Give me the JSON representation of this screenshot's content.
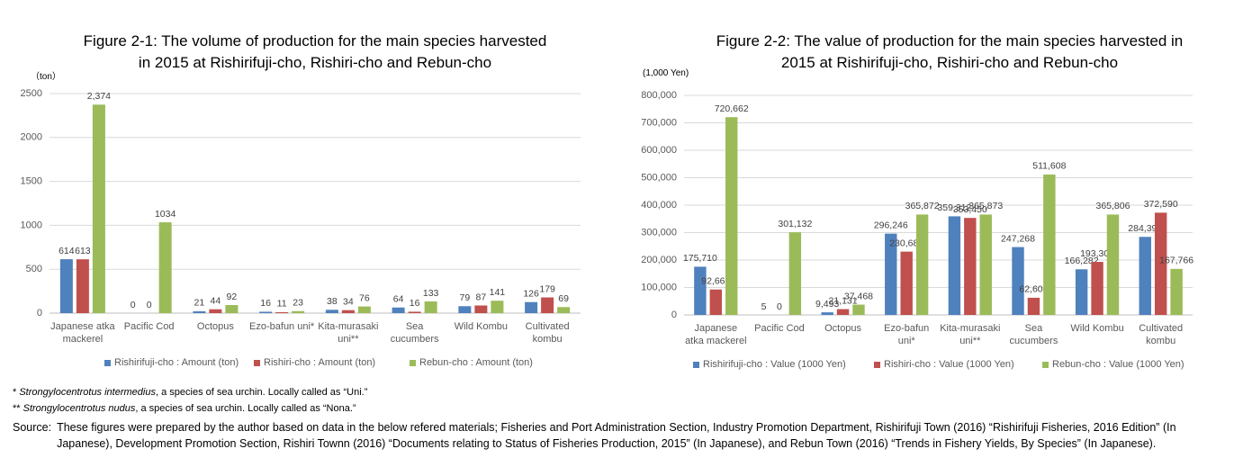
{
  "chart_data": [
    {
      "type": "bar",
      "title": "Figure 2-1:  The volume of production for the main species harvested in 2015 at Rishirifuji-cho, Rishiri-cho and Rebun-cho",
      "y_label": "（ton）",
      "categories": [
        "Japanese atka mackerel",
        "Pacific Cod",
        "Octopus",
        "Ezo-bafun uni*",
        "Kita-murasaki uni**",
        "Sea cucumbers",
        "Wild Kombu",
        "Cultivated kombu"
      ],
      "series": [
        {
          "name": "Rishirifuji-cho : Amount (ton)",
          "color": "#4f81bd",
          "values": [
            614,
            0,
            21,
            16,
            38,
            64,
            79,
            126
          ]
        },
        {
          "name": "Rishiri-cho : Amount (ton)",
          "color": "#c0504d",
          "values": [
            613,
            0,
            44,
            11,
            34,
            16,
            87,
            179
          ]
        },
        {
          "name": "Rebun-cho : Amount (ton)",
          "color": "#9bbb59",
          "values": [
            2374,
            1034,
            92,
            23,
            76,
            133,
            141,
            69
          ],
          "value_labels": [
            "2,374",
            "1034",
            "92",
            "23",
            "76",
            "133",
            "141",
            "69"
          ]
        }
      ],
      "ylim": [
        0,
        2500
      ],
      "yticks": [
        0,
        500,
        1000,
        1500,
        2000,
        2500
      ],
      "grid": true,
      "legend": "bottom"
    },
    {
      "type": "bar",
      "title": "Figure 2-2:  The value of production for the main species harvested in 2015 at Rishirifuji-cho, Rishiri-cho and Rebun-cho",
      "y_label": "(1,000 Yen)",
      "categories": [
        "Japanese atka mackerel",
        "Pacific Cod",
        "Octopus",
        "Ezo-bafun uni*",
        "Kita-murasaki uni**",
        "Sea cucumbers",
        "Wild Kombu",
        "Cultivated kombu"
      ],
      "series": [
        {
          "name": "Rishirifuji-cho : Value (1000 Yen)",
          "color": "#4f81bd",
          "values": [
            175710,
            5,
            9493,
            296246,
            359312,
            247268,
            166282,
            284397
          ],
          "value_labels": [
            "175,710",
            "5",
            "9,493",
            "296,246",
            "359,312",
            "247,268",
            "166,282",
            "284,397"
          ]
        },
        {
          "name": "Rishiri-cho : Value (1000 Yen)",
          "color": "#c0504d",
          "values": [
            92665,
            0,
            21131,
            230681,
            353450,
            62606,
            193303,
            372590
          ],
          "value_labels": [
            "92,665",
            "0",
            "21,131",
            "230,681",
            "353,450",
            "62,606",
            "193,303",
            "372,590"
          ]
        },
        {
          "name": "Rebun-cho : Value (1000 Yen)",
          "color": "#9bbb59",
          "values": [
            720662,
            301132,
            37468,
            365872,
            365873,
            511608,
            365806,
            167766
          ],
          "value_labels": [
            "720,662",
            "301,132",
            "37,468",
            "365,872",
            "365,873",
            "511,608",
            "365,806",
            "167,766"
          ]
        }
      ],
      "ylim": [
        0,
        800000
      ],
      "yticks": [
        0,
        {
          "value": 100000,
          "label": "100,000"
        },
        {
          "value": 200000,
          "label": "200,000"
        },
        {
          "value": 300000,
          "label": "300,000"
        },
        {
          "value": 400000,
          "label": "400,000"
        },
        {
          "value": 500000,
          "label": "500,000"
        },
        {
          "value": 600000,
          "label": "600,000"
        },
        {
          "value": 700000,
          "label": "700,000"
        },
        {
          "value": 800000,
          "label": "800,000"
        }
      ],
      "grid": true,
      "legend": "bottom"
    }
  ],
  "footnotes": [
    {
      "mark": "*",
      "species": "Strongylocentrotus intermedius",
      "text": ", a species of sea urchin. Locally called as “Uni.”"
    },
    {
      "mark": "**",
      "species": "Strongylocentrotus nudus",
      "text": ", a species of sea urchin. Locally called as “Nona.”"
    }
  ],
  "source": {
    "label": "Source:",
    "text": "These figures were prepared by the author based on data in the below refered materials; Fisheries and Port Administration Section, Industry Promotion Department, Rishirifuji Town (2016) “Rishirifuji Fisheries, 2016 Edition” (In Japanese), Development Promotion Section, Rishiri Townn (2016) “Documents relating to Status of Fisheries Production, 2015” (In Japanese), and Rebun Town (2016) “Trends in Fishery Yields, By Species” (In Japanese)."
  }
}
